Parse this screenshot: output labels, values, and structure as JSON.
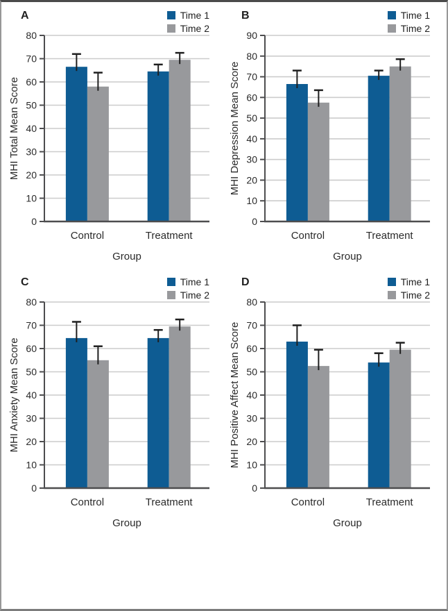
{
  "legend": {
    "items": [
      {
        "label": "Time 1",
        "color": "#0e5c93"
      },
      {
        "label": "Time 2",
        "color": "#98999c"
      }
    ]
  },
  "colors": {
    "bar_time1": "#0e5c93",
    "bar_time2": "#98999c",
    "gridline": "#cccccc",
    "axis": "#4d4d4f",
    "error_bar": "#1f1f1f",
    "text": "#2a2a2a",
    "frame_border": "#979797",
    "background": "#ffffff"
  },
  "chart_data": [
    {
      "type": "bar",
      "panel": "A",
      "ylabel": "MHI Total Mean Score",
      "xlabel": "Group",
      "ylim": [
        0,
        80
      ],
      "ytick_step": 10,
      "grid": true,
      "legend_position": "top-right",
      "categories": [
        "Control",
        "Treatment"
      ],
      "series": [
        {
          "name": "Time 1",
          "color": "#0e5c93",
          "values": [
            66.5,
            64.5
          ],
          "errors_up": [
            5.5,
            3
          ]
        },
        {
          "name": "Time 2",
          "color": "#98999c",
          "values": [
            58,
            69.5
          ],
          "errors_up": [
            6,
            3
          ]
        }
      ]
    },
    {
      "type": "bar",
      "panel": "B",
      "ylabel": "MHI Depression Mean Score",
      "xlabel": "Group",
      "ylim": [
        0,
        90
      ],
      "ytick_step": 10,
      "grid": true,
      "legend_position": "top-right",
      "categories": [
        "Control",
        "Treatment"
      ],
      "series": [
        {
          "name": "Time 1",
          "color": "#0e5c93",
          "values": [
            66.5,
            70.5
          ],
          "errors_up": [
            6.5,
            2.5
          ]
        },
        {
          "name": "Time 2",
          "color": "#98999c",
          "values": [
            57.5,
            75
          ],
          "errors_up": [
            6,
            3.5
          ]
        }
      ]
    },
    {
      "type": "bar",
      "panel": "C",
      "ylabel": "MHI Anxiety Mean Score",
      "xlabel": "Group",
      "ylim": [
        0,
        80
      ],
      "ytick_step": 10,
      "grid": true,
      "legend_position": "top-right",
      "categories": [
        "Control",
        "Treatment"
      ],
      "series": [
        {
          "name": "Time 1",
          "color": "#0e5c93",
          "values": [
            64.5,
            64.5
          ],
          "errors_up": [
            7,
            3.5
          ]
        },
        {
          "name": "Time 2",
          "color": "#98999c",
          "values": [
            55,
            69.5
          ],
          "errors_up": [
            6,
            3
          ]
        }
      ]
    },
    {
      "type": "bar",
      "panel": "D",
      "ylabel": "MHI Positive Affect Mean Score",
      "xlabel": "Group",
      "ylim": [
        0,
        80
      ],
      "ytick_step": 10,
      "grid": true,
      "legend_position": "top-right",
      "categories": [
        "Control",
        "Treatment"
      ],
      "series": [
        {
          "name": "Time 1",
          "color": "#0e5c93",
          "values": [
            63,
            54
          ],
          "errors_up": [
            7,
            4
          ]
        },
        {
          "name": "Time 2",
          "color": "#98999c",
          "values": [
            52.5,
            59.5
          ],
          "errors_up": [
            7,
            3
          ]
        }
      ]
    }
  ]
}
